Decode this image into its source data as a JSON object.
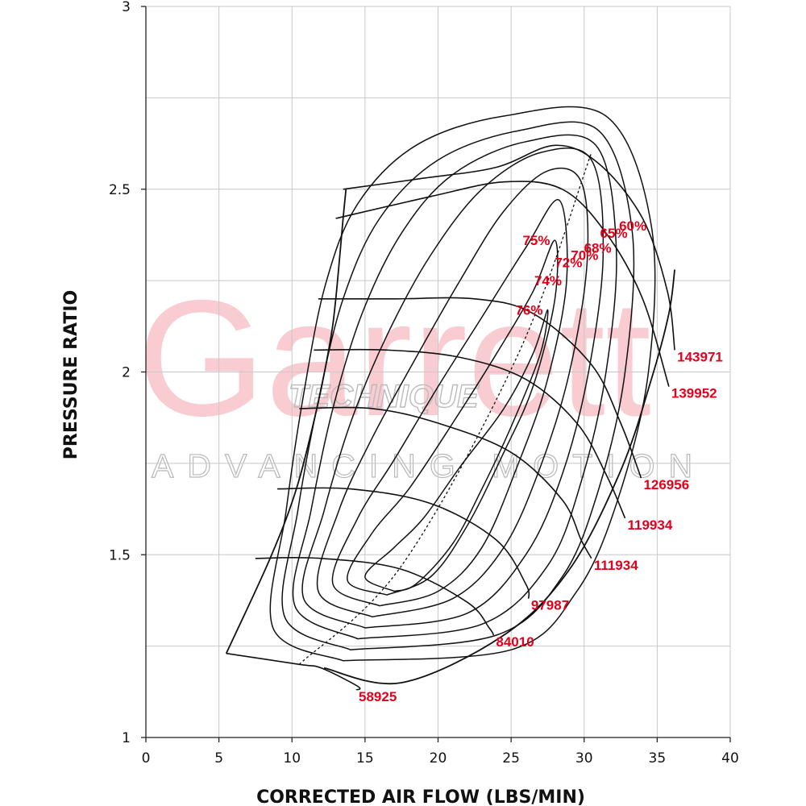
{
  "chart_data": {
    "type": "line",
    "title": "",
    "xlabel": "CORRECTED AIR FLOW (LBS/MIN)",
    "ylabel": "PRESSURE RATIO",
    "xlim": [
      0,
      40
    ],
    "ylim": [
      1,
      3
    ],
    "xticks": [
      0,
      5,
      10,
      15,
      20,
      25,
      30,
      35,
      40
    ],
    "yticks": [
      1,
      1.5,
      2,
      2.5,
      3
    ],
    "ytick_labels": [
      "1",
      "1.5",
      "2",
      "2.5",
      "3"
    ],
    "grid": true,
    "watermark": {
      "brand": "Garrett",
      "tagline": "ADVANCING MOTION",
      "dealer": "TECHNIQUE"
    },
    "colors": {
      "lines": "#111111",
      "labels": "#e3001b",
      "grid": "#c8c8c8",
      "watermark": "#f39aa4"
    },
    "surge_line": [
      [
        5.5,
        1.23
      ],
      [
        8.5,
        1.49
      ],
      [
        10.3,
        1.68
      ],
      [
        11.7,
        1.9
      ],
      [
        12.6,
        2.08
      ],
      [
        13.0,
        2.2
      ],
      [
        13.5,
        2.42
      ],
      [
        13.7,
        2.5
      ]
    ],
    "choke_line": [
      [
        12.2,
        1.19
      ],
      [
        17.5,
        1.15
      ],
      [
        24.5,
        1.28
      ],
      [
        29.0,
        1.46
      ],
      [
        32.5,
        1.73
      ],
      [
        34.6,
        1.98
      ],
      [
        35.8,
        2.16
      ],
      [
        36.2,
        2.28
      ]
    ],
    "peak_efficiency_line": [
      [
        10.5,
        1.2
      ],
      [
        17.5,
        1.47
      ],
      [
        25.5,
        2.05
      ],
      [
        30.5,
        2.6
      ]
    ],
    "speed_lines": [
      {
        "label": "58925",
        "points": [
          [
            5.5,
            1.23
          ],
          [
            10.5,
            1.2
          ],
          [
            12.0,
            1.19
          ],
          [
            14.5,
            1.14
          ],
          [
            14.4,
            1.13
          ]
        ]
      },
      {
        "label": "84010",
        "points": [
          [
            7.5,
            1.49
          ],
          [
            12.0,
            1.49
          ],
          [
            17.5,
            1.46
          ],
          [
            22.0,
            1.37
          ],
          [
            23.5,
            1.3
          ],
          [
            23.8,
            1.28
          ]
        ]
      },
      {
        "label": "97987",
        "points": [
          [
            9.0,
            1.68
          ],
          [
            14.0,
            1.68
          ],
          [
            19.5,
            1.64
          ],
          [
            24.0,
            1.54
          ],
          [
            26.0,
            1.42
          ],
          [
            26.2,
            1.38
          ]
        ]
      },
      {
        "label": "111934",
        "points": [
          [
            10.5,
            1.9
          ],
          [
            15.5,
            1.9
          ],
          [
            20.0,
            1.86
          ],
          [
            25.0,
            1.78
          ],
          [
            28.5,
            1.65
          ],
          [
            29.8,
            1.54
          ],
          [
            30.5,
            1.49
          ]
        ]
      },
      {
        "label": "119934",
        "points": [
          [
            11.5,
            2.06
          ],
          [
            16.5,
            2.06
          ],
          [
            21.5,
            2.04
          ],
          [
            26.0,
            1.98
          ],
          [
            29.5,
            1.86
          ],
          [
            31.5,
            1.72
          ],
          [
            32.8,
            1.6
          ]
        ]
      },
      {
        "label": "126956",
        "points": [
          [
            11.8,
            2.2
          ],
          [
            17.0,
            2.2
          ],
          [
            22.5,
            2.2
          ],
          [
            26.5,
            2.16
          ],
          [
            30.5,
            2.02
          ],
          [
            32.5,
            1.86
          ],
          [
            33.9,
            1.71
          ]
        ]
      },
      {
        "label": "139952",
        "points": [
          [
            13.0,
            2.42
          ],
          [
            19.5,
            2.48
          ],
          [
            24.5,
            2.52
          ],
          [
            28.5,
            2.5
          ],
          [
            31.5,
            2.38
          ],
          [
            34.0,
            2.2
          ],
          [
            35.8,
            1.96
          ]
        ]
      },
      {
        "label": "143971",
        "points": [
          [
            13.5,
            2.5
          ],
          [
            19.0,
            2.53
          ],
          [
            24.0,
            2.56
          ],
          [
            28.0,
            2.62
          ],
          [
            31.0,
            2.57
          ],
          [
            34.0,
            2.42
          ],
          [
            35.7,
            2.22
          ],
          [
            36.2,
            2.06
          ]
        ]
      }
    ],
    "efficiency_islands": [
      {
        "label": "76%",
        "points": [
          [
            17.0,
            1.4
          ],
          [
            15.0,
            1.44
          ],
          [
            17.0,
            1.52
          ],
          [
            19.0,
            1.6
          ],
          [
            21.5,
            1.74
          ],
          [
            24.5,
            1.9
          ],
          [
            26.5,
            2.05
          ],
          [
            27.5,
            2.17
          ],
          [
            27.0,
            2.05
          ],
          [
            25.0,
            1.85
          ],
          [
            23.0,
            1.68
          ],
          [
            21.0,
            1.53
          ],
          [
            18.5,
            1.42
          ],
          [
            17.0,
            1.4
          ]
        ]
      },
      {
        "label": "75%",
        "points": [
          [
            16.5,
            1.39
          ],
          [
            13.8,
            1.43
          ],
          [
            15.5,
            1.56
          ],
          [
            18.0,
            1.68
          ],
          [
            21.0,
            1.86
          ],
          [
            24.0,
            2.05
          ],
          [
            26.5,
            2.22
          ],
          [
            28.0,
            2.36
          ],
          [
            28.0,
            2.2
          ],
          [
            26.5,
            1.96
          ],
          [
            24.5,
            1.78
          ],
          [
            22.0,
            1.58
          ],
          [
            19.5,
            1.44
          ],
          [
            16.5,
            1.39
          ]
        ]
      },
      {
        "label": "74%",
        "points": [
          [
            16.0,
            1.36
          ],
          [
            12.8,
            1.42
          ],
          [
            14.5,
            1.6
          ],
          [
            17.0,
            1.76
          ],
          [
            20.0,
            1.96
          ],
          [
            23.0,
            2.15
          ],
          [
            26.0,
            2.34
          ],
          [
            28.3,
            2.47
          ],
          [
            28.8,
            2.25
          ],
          [
            27.5,
            1.98
          ],
          [
            25.5,
            1.75
          ],
          [
            23.0,
            1.52
          ],
          [
            20.0,
            1.4
          ],
          [
            16.0,
            1.36
          ]
        ]
      },
      {
        "label": "72%",
        "points": [
          [
            15.5,
            1.33
          ],
          [
            11.8,
            1.4
          ],
          [
            13.2,
            1.62
          ],
          [
            15.5,
            1.82
          ],
          [
            18.5,
            2.04
          ],
          [
            21.5,
            2.25
          ],
          [
            24.5,
            2.44
          ],
          [
            27.5,
            2.55
          ],
          [
            29.8,
            2.52
          ],
          [
            30.2,
            2.3
          ],
          [
            29.0,
            2.0
          ],
          [
            27.0,
            1.74
          ],
          [
            24.5,
            1.52
          ],
          [
            21.0,
            1.38
          ],
          [
            15.5,
            1.33
          ]
        ]
      },
      {
        "label": "70%",
        "points": [
          [
            15.0,
            1.3
          ],
          [
            10.8,
            1.38
          ],
          [
            12.2,
            1.62
          ],
          [
            14.0,
            1.86
          ],
          [
            16.5,
            2.1
          ],
          [
            19.5,
            2.32
          ],
          [
            23.0,
            2.5
          ],
          [
            27.0,
            2.6
          ],
          [
            30.5,
            2.58
          ],
          [
            31.3,
            2.32
          ],
          [
            30.3,
            2.0
          ],
          [
            28.5,
            1.72
          ],
          [
            26.0,
            1.5
          ],
          [
            22.0,
            1.34
          ],
          [
            15.0,
            1.3
          ]
        ]
      },
      {
        "label": "68%",
        "points": [
          [
            14.5,
            1.27
          ],
          [
            10.2,
            1.36
          ],
          [
            11.3,
            1.62
          ],
          [
            12.8,
            1.9
          ],
          [
            14.8,
            2.16
          ],
          [
            17.5,
            2.38
          ],
          [
            21.0,
            2.54
          ],
          [
            26.0,
            2.63
          ],
          [
            30.8,
            2.62
          ],
          [
            32.2,
            2.34
          ],
          [
            31.5,
            2.0
          ],
          [
            29.8,
            1.7
          ],
          [
            27.5,
            1.47
          ],
          [
            23.0,
            1.31
          ],
          [
            14.5,
            1.27
          ]
        ]
      },
      {
        "label": "65%",
        "points": [
          [
            14.0,
            1.24
          ],
          [
            9.5,
            1.33
          ],
          [
            10.4,
            1.62
          ],
          [
            11.8,
            1.92
          ],
          [
            13.5,
            2.2
          ],
          [
            16.0,
            2.42
          ],
          [
            20.0,
            2.58
          ],
          [
            25.5,
            2.66
          ],
          [
            31.0,
            2.66
          ],
          [
            33.3,
            2.38
          ],
          [
            32.8,
            2.0
          ],
          [
            31.0,
            1.68
          ],
          [
            28.5,
            1.44
          ],
          [
            24.0,
            1.28
          ],
          [
            14.0,
            1.24
          ]
        ]
      },
      {
        "label": "60%",
        "points": [
          [
            13.5,
            1.21
          ],
          [
            8.7,
            1.3
          ],
          [
            9.6,
            1.62
          ],
          [
            10.8,
            1.94
          ],
          [
            12.3,
            2.24
          ],
          [
            14.5,
            2.46
          ],
          [
            18.5,
            2.62
          ],
          [
            24.5,
            2.7
          ],
          [
            31.5,
            2.7
          ],
          [
            34.6,
            2.4
          ],
          [
            34.4,
            2.0
          ],
          [
            32.3,
            1.65
          ],
          [
            29.5,
            1.4
          ],
          [
            25.0,
            1.24
          ],
          [
            13.5,
            1.21
          ]
        ]
      }
    ]
  }
}
